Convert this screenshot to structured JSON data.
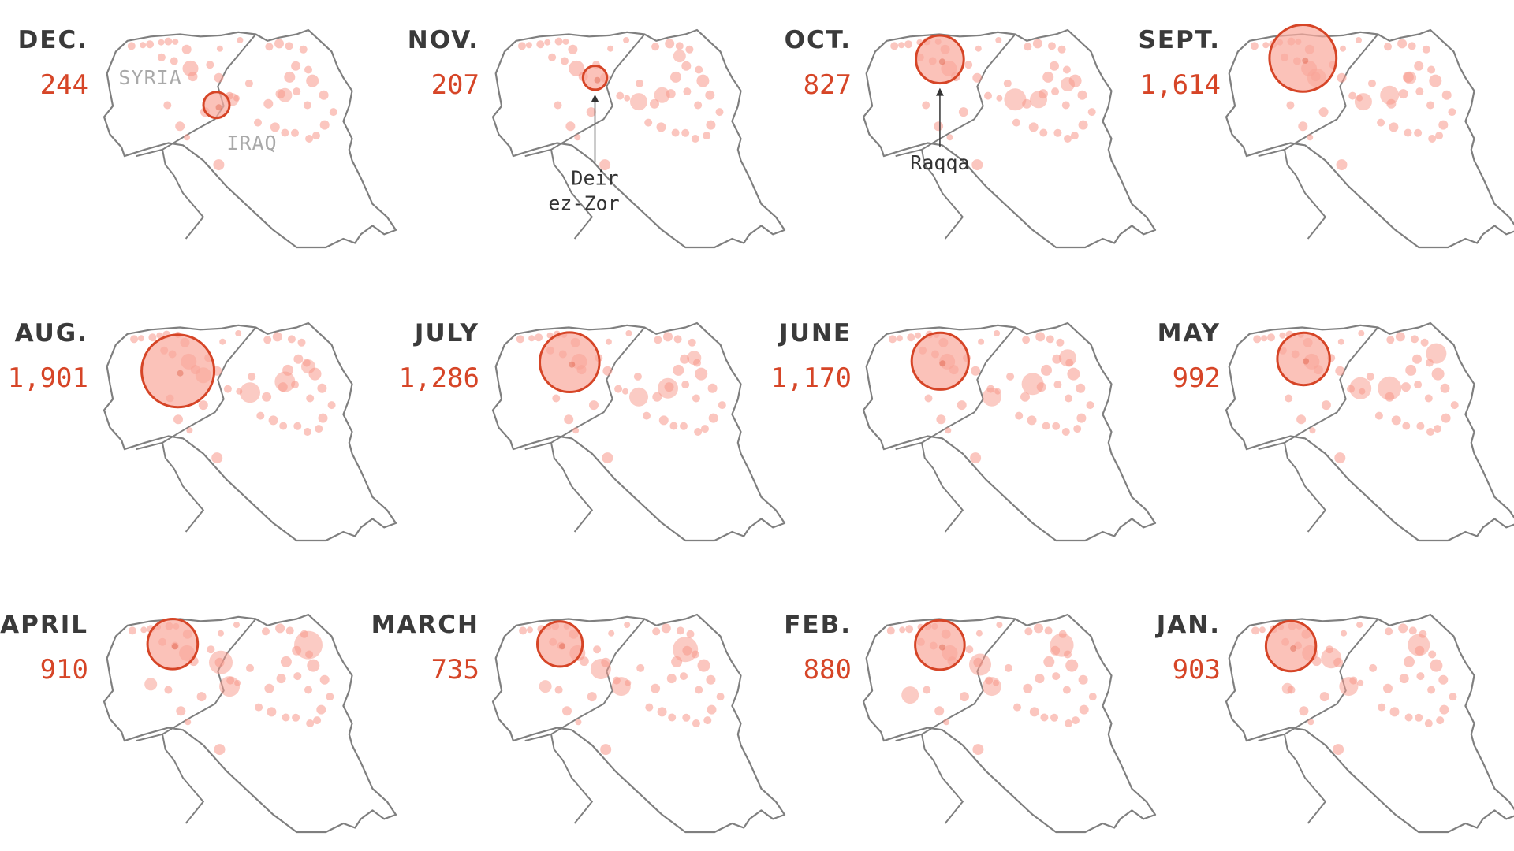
{
  "colors": {
    "outline": "#7f7f7f",
    "dot": "#f7988a",
    "highlight_fill": "#f9a89b",
    "highlight_stroke": "#d64527",
    "count_text": "#d64527",
    "month_text": "#3a3a3a",
    "country_text": "#a9a9a9",
    "callout": "#333333"
  },
  "country_labels": {
    "syria": "SYRIA",
    "iraq": "IRAQ"
  },
  "callouts": {
    "deir": {
      "line1": "Deir",
      "line2": "ez-Zor"
    },
    "raqqa": {
      "line1": "Raqqa"
    }
  },
  "panels": [
    {
      "month": "DEC.",
      "count": "244",
      "value": 244,
      "hx": 0.385,
      "hy": 0.345,
      "labels": true
    },
    {
      "month": "NOV.",
      "count": "207",
      "value": 207,
      "hx": 0.35,
      "hy": 0.22,
      "callout": "deir"
    },
    {
      "month": "OCT.",
      "count": "827",
      "value": 827,
      "hx": 0.262,
      "hy": 0.135,
      "callout": "raqqa"
    },
    {
      "month": "SEPT.",
      "count": "1,614",
      "value": 1614,
      "hx": 0.263,
      "hy": 0.13
    },
    {
      "month": "AUG.",
      "count": "1,901",
      "value": 1901,
      "hx": 0.253,
      "hy": 0.22
    },
    {
      "month": "JULY",
      "count": "1,286",
      "value": 1286,
      "hx": 0.263,
      "hy": 0.18
    },
    {
      "month": "JUNE",
      "count": "1,170",
      "value": 1170,
      "hx": 0.263,
      "hy": 0.175
    },
    {
      "month": "MAY",
      "count": "992",
      "value": 992,
      "hx": 0.265,
      "hy": 0.165
    },
    {
      "month": "APRIL",
      "count": "910",
      "value": 910,
      "hx": 0.235,
      "hy": 0.135
    },
    {
      "month": "MARCH",
      "count": "735",
      "value": 735,
      "hx": 0.23,
      "hy": 0.135
    },
    {
      "month": "FEB.",
      "count": "880",
      "value": 880,
      "hx": 0.262,
      "hy": 0.14
    },
    {
      "month": "JAN.",
      "count": "903",
      "value": 903,
      "hx": 0.222,
      "hy": 0.145
    }
  ]
}
